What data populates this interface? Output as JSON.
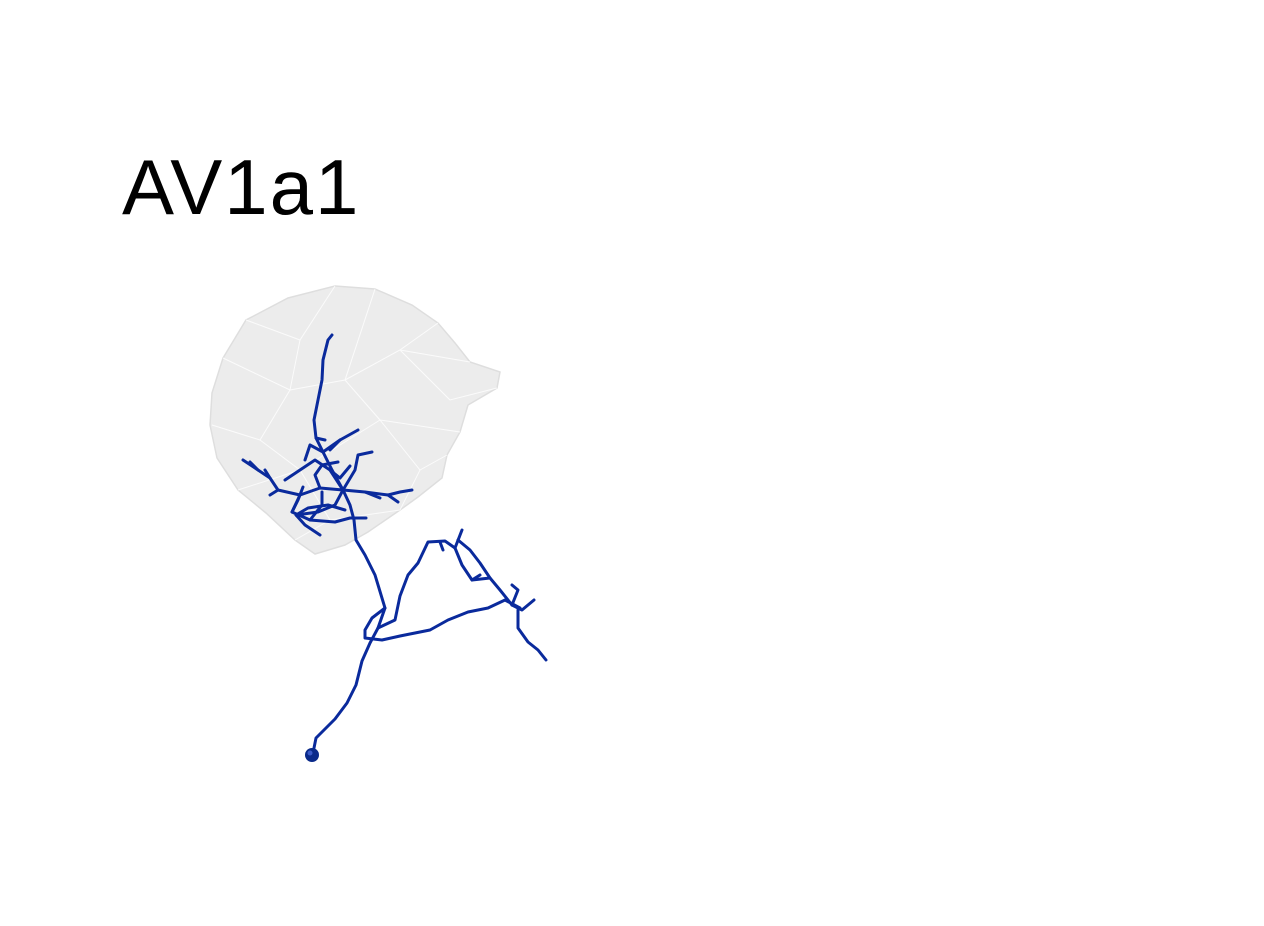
{
  "title": "AV1a1",
  "colors": {
    "neuron": "#0a2a9c",
    "soma": "#0a2a8a",
    "neuropil_fill": "#e9e9e9",
    "neuropil_edge": "#d8d8d8",
    "background": "#ffffff"
  }
}
